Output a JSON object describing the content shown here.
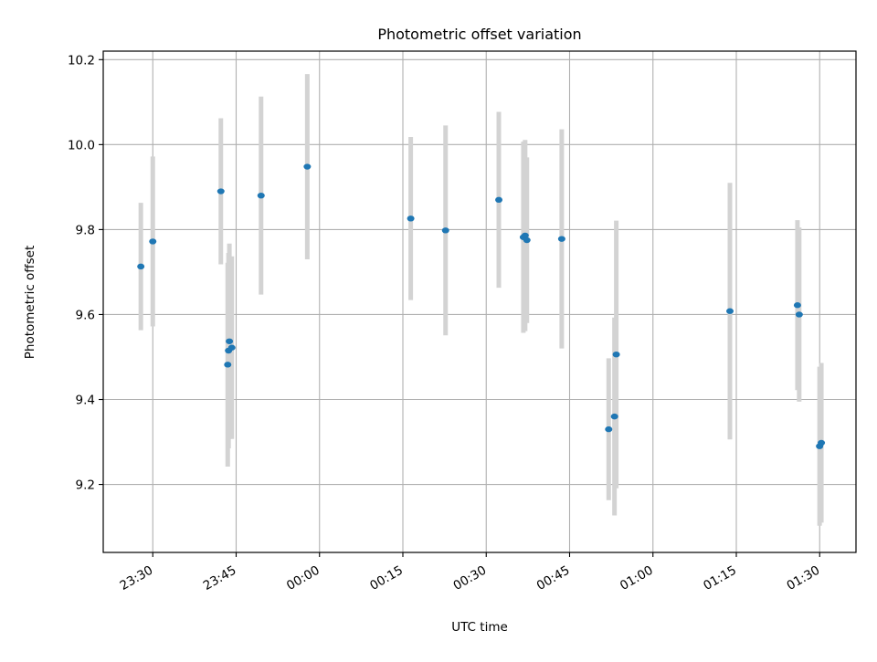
{
  "chart_data": {
    "type": "scatter",
    "title": "Photometric offset variation",
    "xlabel": "UTC time",
    "ylabel": "Photometric offset",
    "x_tick_labels": [
      "23:30",
      "23:45",
      "00:00",
      "00:15",
      "00:30",
      "00:45",
      "01:00",
      "01:15",
      "01:30"
    ],
    "x_ticks": [
      "23:30",
      "23:45",
      "00:00",
      "00:15",
      "00:30",
      "00:45",
      "01:00",
      "01:15",
      "01:30"
    ],
    "xlim": [
      "23:21:05",
      "01:36:32"
    ],
    "y_tick_labels": [
      "9.2",
      "9.4",
      "9.6",
      "9.8",
      "10.0",
      "10.2"
    ],
    "y_ticks": [
      9.2,
      9.4,
      9.6,
      9.8,
      10.0,
      10.2
    ],
    "ylim": [
      9.04,
      10.22
    ],
    "grid": true,
    "colors": {
      "points": "#1f77b4",
      "errorbars": "#d3d3d3"
    },
    "series": [
      {
        "points": [
          {
            "x": "23:27:51",
            "y": 9.713,
            "err": 0.15
          },
          {
            "x": "23:30:00",
            "y": 9.772,
            "err": 0.2
          },
          {
            "x": "23:42:15",
            "y": 9.89,
            "err": 0.172
          },
          {
            "x": "23:43:29",
            "y": 9.482,
            "err": 0.24
          },
          {
            "x": "23:43:38",
            "y": 9.515,
            "err": 0.23
          },
          {
            "x": "23:43:47",
            "y": 9.537,
            "err": 0.23
          },
          {
            "x": "23:44:13",
            "y": 9.522,
            "err": 0.215
          },
          {
            "x": "23:49:29",
            "y": 9.88,
            "err": 0.233
          },
          {
            "x": "23:57:48",
            "y": 9.948,
            "err": 0.218
          },
          {
            "x": "00:16:25",
            "y": 9.826,
            "err": 0.192
          },
          {
            "x": "00:22:41",
            "y": 9.798,
            "err": 0.247
          },
          {
            "x": "00:32:16",
            "y": 9.87,
            "err": 0.207
          },
          {
            "x": "00:36:41",
            "y": 9.782,
            "err": 0.225
          },
          {
            "x": "00:37:00",
            "y": 9.786,
            "err": 0.225
          },
          {
            "x": "00:37:19",
            "y": 9.775,
            "err": 0.195
          },
          {
            "x": "00:43:35",
            "y": 9.778,
            "err": 0.258
          },
          {
            "x": "00:52:02",
            "y": 9.33,
            "err": 0.167
          },
          {
            "x": "00:53:05",
            "y": 9.36,
            "err": 0.233
          },
          {
            "x": "00:53:24",
            "y": 9.506,
            "err": 0.315
          },
          {
            "x": "01:13:51",
            "y": 9.608,
            "err": 0.302
          },
          {
            "x": "01:26:00",
            "y": 9.622,
            "err": 0.2
          },
          {
            "x": "01:26:19",
            "y": 9.6,
            "err": 0.205
          },
          {
            "x": "01:29:59",
            "y": 9.29,
            "err": 0.187
          },
          {
            "x": "01:30:18",
            "y": 9.298,
            "err": 0.188
          }
        ]
      }
    ]
  }
}
